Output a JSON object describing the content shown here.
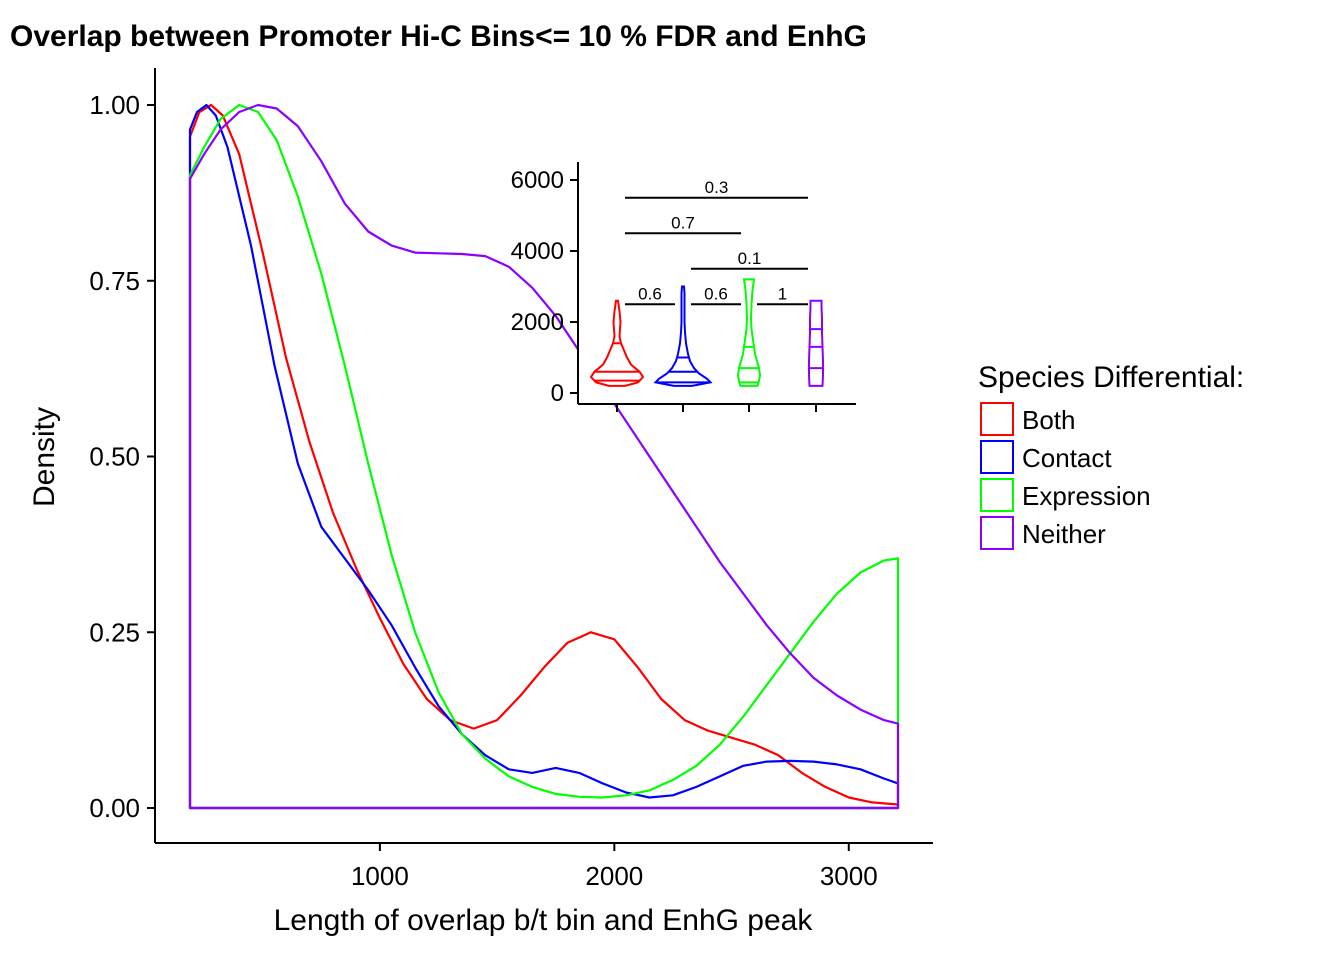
{
  "chart_data": {
    "type": "line",
    "title": "Overlap between Promoter Hi-C Bins<= 10 % FDR and EnhG",
    "xlabel": "Length of overlap b/t bin and EnhG peak",
    "ylabel": "Density",
    "xlim": [
      190,
      3210
    ],
    "ylim": [
      0,
      1
    ],
    "x_ticks": [
      "1000",
      "2000",
      "3000"
    ],
    "y_ticks": [
      "0.00",
      "0.25",
      "0.50",
      "0.75",
      "1.00"
    ],
    "legend": {
      "title": "Species Differential:",
      "position": "right"
    },
    "series": [
      {
        "name": "Both",
        "color": "#ff0000",
        "points": [
          [
            190,
            0.955
          ],
          [
            230,
            0.99
          ],
          [
            280,
            1.0
          ],
          [
            330,
            0.985
          ],
          [
            400,
            0.93
          ],
          [
            500,
            0.79
          ],
          [
            600,
            0.64
          ],
          [
            700,
            0.52
          ],
          [
            800,
            0.42
          ],
          [
            900,
            0.34
          ],
          [
            1000,
            0.27
          ],
          [
            1100,
            0.205
          ],
          [
            1200,
            0.155
          ],
          [
            1300,
            0.125
          ],
          [
            1400,
            0.113
          ],
          [
            1500,
            0.125
          ],
          [
            1600,
            0.16
          ],
          [
            1700,
            0.2
          ],
          [
            1800,
            0.235
          ],
          [
            1900,
            0.25
          ],
          [
            2000,
            0.24
          ],
          [
            2100,
            0.2
          ],
          [
            2200,
            0.155
          ],
          [
            2300,
            0.125
          ],
          [
            2400,
            0.11
          ],
          [
            2500,
            0.1
          ],
          [
            2600,
            0.09
          ],
          [
            2700,
            0.075
          ],
          [
            2800,
            0.05
          ],
          [
            2900,
            0.03
          ],
          [
            3000,
            0.015
          ],
          [
            3100,
            0.008
          ],
          [
            3210,
            0.005
          ]
        ]
      },
      {
        "name": "Contact",
        "color": "#0000ff",
        "points": [
          [
            190,
            0.965
          ],
          [
            220,
            0.99
          ],
          [
            260,
            1.0
          ],
          [
            300,
            0.985
          ],
          [
            350,
            0.94
          ],
          [
            450,
            0.8
          ],
          [
            550,
            0.63
          ],
          [
            650,
            0.49
          ],
          [
            750,
            0.4
          ],
          [
            850,
            0.355
          ],
          [
            950,
            0.31
          ],
          [
            1050,
            0.26
          ],
          [
            1150,
            0.2
          ],
          [
            1250,
            0.145
          ],
          [
            1350,
            0.105
          ],
          [
            1450,
            0.075
          ],
          [
            1550,
            0.055
          ],
          [
            1650,
            0.05
          ],
          [
            1750,
            0.057
          ],
          [
            1850,
            0.05
          ],
          [
            1950,
            0.035
          ],
          [
            2050,
            0.022
          ],
          [
            2150,
            0.015
          ],
          [
            2250,
            0.018
          ],
          [
            2350,
            0.03
          ],
          [
            2450,
            0.045
          ],
          [
            2550,
            0.06
          ],
          [
            2650,
            0.066
          ],
          [
            2750,
            0.067
          ],
          [
            2850,
            0.066
          ],
          [
            2950,
            0.062
          ],
          [
            3050,
            0.055
          ],
          [
            3150,
            0.042
          ],
          [
            3210,
            0.035
          ]
        ]
      },
      {
        "name": "Expression",
        "color": "#00ff00",
        "points": [
          [
            190,
            0.9
          ],
          [
            250,
            0.94
          ],
          [
            320,
            0.98
          ],
          [
            400,
            1.0
          ],
          [
            480,
            0.99
          ],
          [
            560,
            0.95
          ],
          [
            650,
            0.87
          ],
          [
            750,
            0.76
          ],
          [
            850,
            0.63
          ],
          [
            950,
            0.49
          ],
          [
            1050,
            0.36
          ],
          [
            1150,
            0.25
          ],
          [
            1250,
            0.165
          ],
          [
            1350,
            0.105
          ],
          [
            1450,
            0.07
          ],
          [
            1550,
            0.045
          ],
          [
            1650,
            0.03
          ],
          [
            1750,
            0.02
          ],
          [
            1850,
            0.016
          ],
          [
            1950,
            0.015
          ],
          [
            2050,
            0.018
          ],
          [
            2150,
            0.025
          ],
          [
            2250,
            0.04
          ],
          [
            2350,
            0.06
          ],
          [
            2450,
            0.09
          ],
          [
            2550,
            0.13
          ],
          [
            2650,
            0.175
          ],
          [
            2750,
            0.22
          ],
          [
            2850,
            0.265
          ],
          [
            2950,
            0.305
          ],
          [
            3050,
            0.335
          ],
          [
            3150,
            0.352
          ],
          [
            3210,
            0.355
          ]
        ]
      },
      {
        "name": "Neither",
        "color": "#8b00ff",
        "points": [
          [
            190,
            0.895
          ],
          [
            250,
            0.93
          ],
          [
            320,
            0.965
          ],
          [
            400,
            0.99
          ],
          [
            480,
            1.0
          ],
          [
            560,
            0.995
          ],
          [
            650,
            0.97
          ],
          [
            750,
            0.92
          ],
          [
            850,
            0.86
          ],
          [
            950,
            0.82
          ],
          [
            1050,
            0.8
          ],
          [
            1150,
            0.79
          ],
          [
            1250,
            0.789
          ],
          [
            1350,
            0.788
          ],
          [
            1450,
            0.785
          ],
          [
            1550,
            0.77
          ],
          [
            1650,
            0.74
          ],
          [
            1750,
            0.7
          ],
          [
            1850,
            0.65
          ],
          [
            1950,
            0.6
          ],
          [
            2050,
            0.55
          ],
          [
            2150,
            0.5
          ],
          [
            2250,
            0.45
          ],
          [
            2350,
            0.4
          ],
          [
            2450,
            0.35
          ],
          [
            2550,
            0.305
          ],
          [
            2650,
            0.26
          ],
          [
            2750,
            0.22
          ],
          [
            2850,
            0.185
          ],
          [
            2950,
            0.16
          ],
          [
            3050,
            0.14
          ],
          [
            3150,
            0.125
          ],
          [
            3210,
            0.12
          ]
        ]
      }
    ],
    "inset": {
      "type": "violin",
      "ylim": [
        0,
        6500
      ],
      "y_ticks": [
        "0",
        "2000",
        "4000",
        "6000"
      ],
      "violins": [
        {
          "name": "Both",
          "color": "#ff0000",
          "min": 200,
          "max": 2600,
          "quantiles": [
            350,
            600,
            1400
          ],
          "profile": [
            [
              200,
              16
            ],
            [
              300,
              42
            ],
            [
              450,
              52
            ],
            [
              600,
              45
            ],
            [
              800,
              28
            ],
            [
              1000,
              20
            ],
            [
              1200,
              14
            ],
            [
              1400,
              8
            ],
            [
              1600,
              5
            ],
            [
              1800,
              6
            ],
            [
              2000,
              7
            ],
            [
              2300,
              5
            ],
            [
              2600,
              2
            ]
          ]
        },
        {
          "name": "Contact",
          "color": "#0000ff",
          "min": 200,
          "max": 3000,
          "quantiles": [
            300,
            600,
            1000
          ],
          "profile": [
            [
              200,
              18
            ],
            [
              300,
              55
            ],
            [
              400,
              48
            ],
            [
              550,
              32
            ],
            [
              700,
              22
            ],
            [
              900,
              14
            ],
            [
              1100,
              10
            ],
            [
              1400,
              6
            ],
            [
              1700,
              4
            ],
            [
              2000,
              3
            ],
            [
              2400,
              3
            ],
            [
              2800,
              3
            ],
            [
              3000,
              2
            ]
          ]
        },
        {
          "name": "Expression",
          "color": "#00ff00",
          "min": 200,
          "max": 3200,
          "quantiles": [
            300,
            700,
            1300
          ],
          "profile": [
            [
              200,
              17
            ],
            [
              350,
              20
            ],
            [
              500,
              22
            ],
            [
              700,
              20
            ],
            [
              900,
              16
            ],
            [
              1100,
              12
            ],
            [
              1300,
              10
            ],
            [
              1500,
              8
            ],
            [
              1800,
              5
            ],
            [
              2100,
              4
            ],
            [
              2500,
              5
            ],
            [
              2900,
              7
            ],
            [
              3200,
              10
            ]
          ]
        },
        {
          "name": "Neither",
          "color": "#8b00ff",
          "min": 200,
          "max": 2600,
          "quantiles": [
            700,
            1300,
            1800
          ],
          "profile": [
            [
              200,
              13
            ],
            [
              500,
              14
            ],
            [
              900,
              14
            ],
            [
              1300,
              13
            ],
            [
              1700,
              12
            ],
            [
              2100,
              12
            ],
            [
              2400,
              11
            ],
            [
              2600,
              11
            ]
          ]
        }
      ],
      "comparisons": [
        {
          "from": 0,
          "to": 3,
          "y": 5500,
          "label": "0.3"
        },
        {
          "from": 0,
          "to": 2,
          "y": 4500,
          "label": "0.7"
        },
        {
          "from": 1,
          "to": 3,
          "y": 3500,
          "label": "0.1"
        },
        {
          "from": 0,
          "to": 1,
          "y": 2500,
          "label": "0.6"
        },
        {
          "from": 1,
          "to": 2,
          "y": 2500,
          "label": "0.6"
        },
        {
          "from": 2,
          "to": 3,
          "y": 2500,
          "label": "1"
        }
      ]
    }
  }
}
